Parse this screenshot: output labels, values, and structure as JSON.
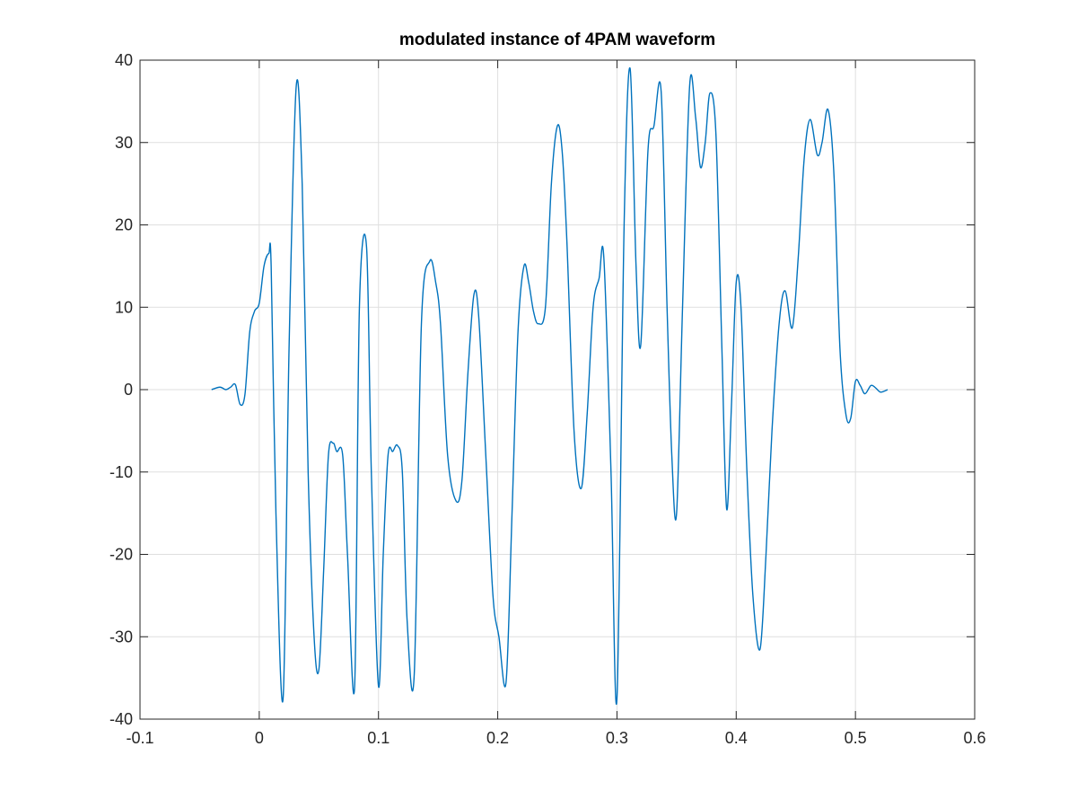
{
  "chart_data": {
    "type": "line",
    "title": "modulated instance of 4PAM waveform",
    "xlabel": "",
    "ylabel": "",
    "xlim": [
      -0.1,
      0.6
    ],
    "ylim": [
      -40,
      40
    ],
    "xticks": [
      -0.1,
      0,
      0.1,
      0.2,
      0.3,
      0.4,
      0.5,
      0.6
    ],
    "xtick_labels": [
      "-0.1",
      "0",
      "0.1",
      "0.2",
      "0.3",
      "0.4",
      "0.5",
      "0.6"
    ],
    "yticks": [
      -40,
      -30,
      -20,
      -10,
      0,
      10,
      20,
      30,
      40
    ],
    "ytick_labels": [
      "-40",
      "-30",
      "-20",
      "-10",
      "0",
      "10",
      "20",
      "30",
      "40"
    ],
    "grid": true,
    "legend": "none",
    "line_color": "#0072BD",
    "series": [
      {
        "x": [
          -0.04,
          -0.033,
          -0.028,
          -0.024,
          -0.02,
          -0.016,
          -0.012,
          -0.008,
          -0.004,
          0.0,
          0.004,
          0.008,
          0.01,
          0.014,
          0.02,
          0.025,
          0.031,
          0.036,
          0.041,
          0.046,
          0.05,
          0.054,
          0.058,
          0.062,
          0.065,
          0.07,
          0.074,
          0.08,
          0.084,
          0.09,
          0.094,
          0.1,
          0.104,
          0.108,
          0.112,
          0.116,
          0.12,
          0.124,
          0.13,
          0.136,
          0.143,
          0.148,
          0.152,
          0.158,
          0.165,
          0.17,
          0.175,
          0.18,
          0.184,
          0.19,
          0.196,
          0.201,
          0.207,
          0.212,
          0.217,
          0.222,
          0.226,
          0.23,
          0.234,
          0.24,
          0.245,
          0.25,
          0.254,
          0.258,
          0.264,
          0.27,
          0.275,
          0.28,
          0.285,
          0.289,
          0.295,
          0.3,
          0.306,
          0.311,
          0.316,
          0.32,
          0.326,
          0.331,
          0.337,
          0.342,
          0.346,
          0.35,
          0.355,
          0.361,
          0.366,
          0.37,
          0.374,
          0.378,
          0.383,
          0.388,
          0.392,
          0.396,
          0.4,
          0.404,
          0.409,
          0.414,
          0.42,
          0.425,
          0.43,
          0.436,
          0.441,
          0.447,
          0.452,
          0.457,
          0.462,
          0.468,
          0.472,
          0.477,
          0.482,
          0.487,
          0.492,
          0.496,
          0.5,
          0.504,
          0.508,
          0.513,
          0.517,
          0.521,
          0.527
        ],
        "y": [
          0.0,
          0.3,
          0.0,
          0.3,
          0.6,
          -1.8,
          -0.6,
          7.0,
          9.5,
          10.5,
          15.0,
          16.5,
          15.0,
          -15.0,
          -37.5,
          5.0,
          36.8,
          25.0,
          -10.0,
          -30.0,
          -34.0,
          -22.0,
          -8.0,
          -6.5,
          -7.5,
          -8.0,
          -20.0,
          -36.0,
          10.0,
          17.3,
          -10.0,
          -36.0,
          -20.0,
          -8.0,
          -7.5,
          -6.8,
          -10.0,
          -28.0,
          -34.5,
          8.0,
          15.6,
          13.0,
          8.0,
          -8.0,
          -13.5,
          -11.0,
          2.0,
          11.5,
          9.0,
          -8.0,
          -25.0,
          -30.0,
          -35.5,
          -15.0,
          7.0,
          15.0,
          13.0,
          9.5,
          8.0,
          10.0,
          25.0,
          32.0,
          29.0,
          18.0,
          -5.0,
          -12.0,
          -3.0,
          10.0,
          13.5,
          16.0,
          -10.0,
          -37.5,
          20.0,
          39.0,
          15.0,
          5.5,
          29.0,
          32.0,
          36.3,
          10.0,
          -8.0,
          -15.0,
          10.0,
          37.0,
          33.0,
          27.0,
          30.0,
          36.0,
          31.0,
          5.0,
          -14.5,
          -2.0,
          13.0,
          10.0,
          -10.0,
          -25.0,
          -31.5,
          -20.0,
          -5.0,
          8.0,
          12.0,
          7.5,
          16.0,
          28.0,
          32.8,
          28.5,
          30.0,
          34.0,
          26.0,
          5.0,
          -3.0,
          -3.5,
          1.0,
          0.5,
          -0.5,
          0.5,
          0.2,
          -0.3,
          0.0
        ]
      }
    ]
  }
}
